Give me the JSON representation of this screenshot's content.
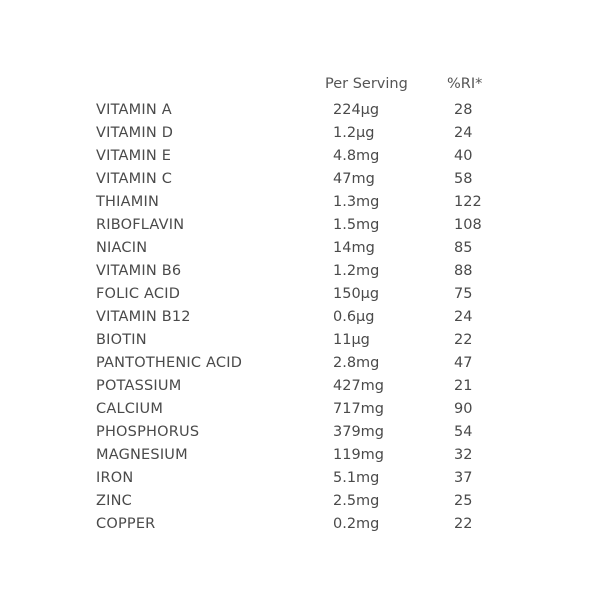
{
  "table": {
    "header": {
      "per_serving": "Per Serving",
      "ri": "%RI*"
    },
    "rows": [
      {
        "name": "VITAMIN A",
        "amount": "224µg",
        "ri": "28"
      },
      {
        "name": "VITAMIN D",
        "amount": "1.2µg",
        "ri": "24"
      },
      {
        "name": "VITAMIN E",
        "amount": "4.8mg",
        "ri": "40"
      },
      {
        "name": "VITAMIN C",
        "amount": "47mg",
        "ri": "58"
      },
      {
        "name": "THIAMIN",
        "amount": "1.3mg",
        "ri": "122"
      },
      {
        "name": "RIBOFLAVIN",
        "amount": "1.5mg",
        "ri": "108"
      },
      {
        "name": "NIACIN",
        "amount": "14mg",
        "ri": "85"
      },
      {
        "name": "VITAMIN B6",
        "amount": "1.2mg",
        "ri": "88"
      },
      {
        "name": "FOLIC ACID",
        "amount": "150µg",
        "ri": "75"
      },
      {
        "name": "VITAMIN B12",
        "amount": "0.6µg",
        "ri": "24"
      },
      {
        "name": "BIOTIN",
        "amount": "11µg",
        "ri": "22"
      },
      {
        "name": "PANTOTHENIC ACID",
        "amount": "2.8mg",
        "ri": "47"
      },
      {
        "name": "POTASSIUM",
        "amount": "427mg",
        "ri": "21"
      },
      {
        "name": "CALCIUM",
        "amount": "717mg",
        "ri": "90"
      },
      {
        "name": "PHOSPHORUS",
        "amount": "379mg",
        "ri": "54"
      },
      {
        "name": "MAGNESIUM",
        "amount": "119mg",
        "ri": "32"
      },
      {
        "name": "IRON",
        "amount": "5.1mg",
        "ri": "37"
      },
      {
        "name": "ZINC",
        "amount": "2.5mg",
        "ri": "25"
      },
      {
        "name": "COPPER",
        "amount": "0.2mg",
        "ri": "22"
      }
    ]
  }
}
